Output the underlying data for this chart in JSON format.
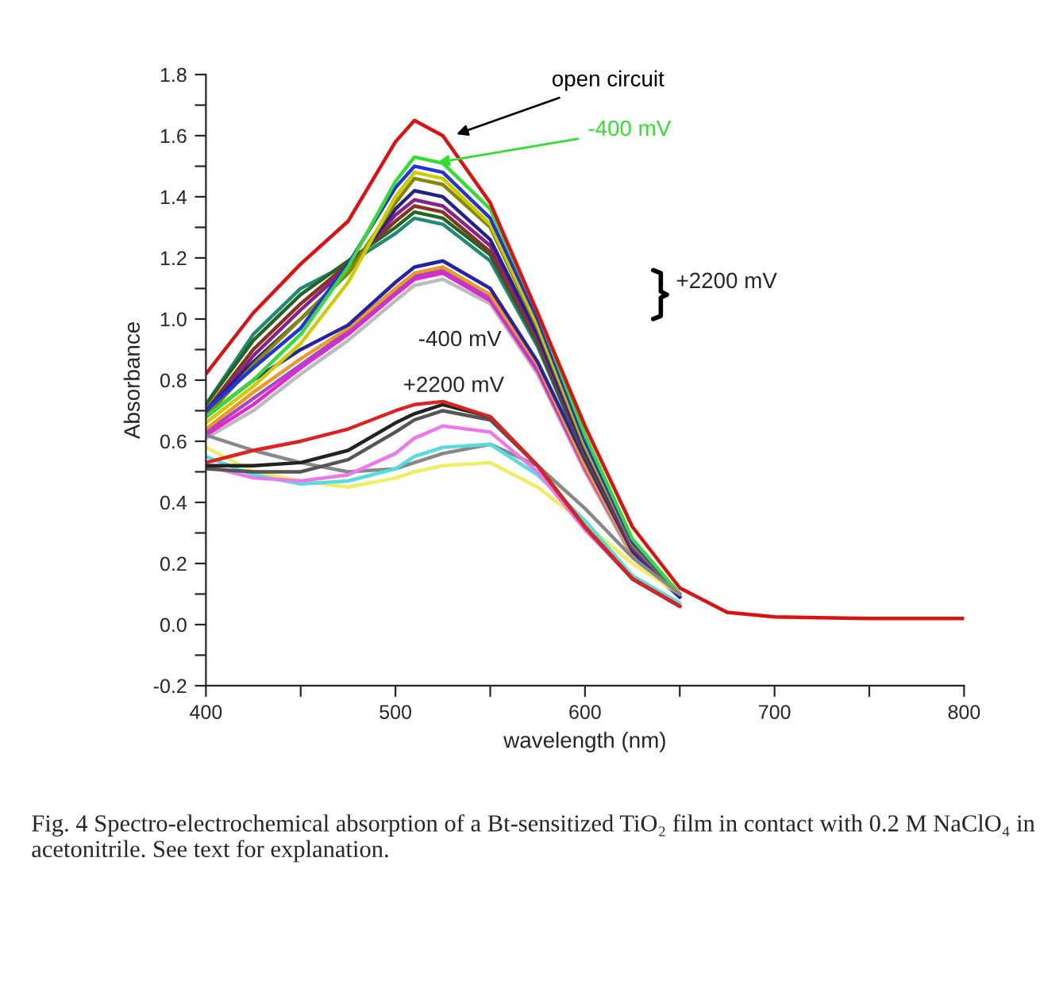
{
  "chart_data": {
    "type": "line",
    "xlabel": "wavelength (nm)",
    "ylabel": "Absorbance",
    "x": [
      400,
      425,
      450,
      475,
      500,
      510,
      525,
      550,
      575,
      600,
      625,
      650,
      675,
      700,
      750,
      800
    ],
    "xlim": [
      400,
      800
    ],
    "ylim": [
      -0.2,
      1.8
    ],
    "xticks": [
      400,
      {
        "value": 450,
        "label": null
      },
      500,
      {
        "value": 550,
        "label": null
      },
      600,
      {
        "value": 650,
        "label": null
      },
      700,
      {
        "value": 750,
        "label": null
      },
      800
    ],
    "yticks": [
      -0.2,
      {
        "value": -0.1,
        "label": null
      },
      {
        "value": 0,
        "label": "0.0"
      },
      {
        "value": 0.1,
        "label": null
      },
      0.2,
      {
        "value": 0.3,
        "label": null
      },
      0.4,
      {
        "value": 0.5,
        "label": null
      },
      0.6,
      {
        "value": 0.7,
        "label": null
      },
      0.8,
      {
        "value": 0.9,
        "label": null
      },
      {
        "value": 1,
        "label": "1.0"
      },
      {
        "value": 1.1,
        "label": null
      },
      1.2,
      {
        "value": 1.3,
        "label": null
      },
      1.4,
      {
        "value": 1.5,
        "label": null
      },
      1.6,
      {
        "value": 1.7,
        "label": null
      },
      1.8
    ],
    "grid": false,
    "legend": false,
    "marker": "none",
    "line_style": "solid",
    "series": [
      {
        "color": "#bbbbbb",
        "values": [
          0.61,
          0.7,
          0.82,
          0.93,
          1.06,
          1.11,
          1.13,
          1.05,
          0.82,
          0.5,
          0.22,
          0.09,
          null,
          null,
          null,
          null
        ]
      },
      {
        "color": "#ee22cc",
        "values": [
          0.62,
          0.72,
          0.84,
          0.95,
          1.08,
          1.13,
          1.15,
          1.06,
          0.83,
          0.51,
          0.23,
          0.09,
          null,
          null,
          null,
          null
        ]
      },
      {
        "color": "#aa44cc",
        "values": [
          0.63,
          0.74,
          0.85,
          0.96,
          1.09,
          1.14,
          1.16,
          1.07,
          0.84,
          0.52,
          0.23,
          0.09,
          null,
          null,
          null,
          null
        ]
      },
      {
        "color": "#ee9922",
        "values": [
          0.64,
          0.76,
          0.87,
          0.97,
          1.1,
          1.15,
          1.17,
          1.08,
          0.85,
          0.52,
          0.23,
          0.09,
          null,
          null,
          null,
          null
        ]
      },
      {
        "color": "#2222aa",
        "values": [
          0.68,
          0.8,
          0.9,
          0.98,
          1.12,
          1.17,
          1.19,
          1.1,
          0.86,
          0.54,
          0.24,
          0.09,
          null,
          null,
          null,
          null
        ]
      },
      {
        "color": "#228877",
        "values": [
          0.72,
          0.95,
          1.1,
          1.18,
          1.28,
          1.33,
          1.31,
          1.19,
          0.91,
          0.55,
          0.25,
          0.1,
          null,
          null,
          null,
          null
        ]
      },
      {
        "color": "#226622",
        "values": [
          0.72,
          0.93,
          1.08,
          1.19,
          1.3,
          1.35,
          1.33,
          1.21,
          0.92,
          0.55,
          0.25,
          0.1,
          null,
          null,
          null,
          null
        ]
      },
      {
        "color": "#883322",
        "values": [
          0.7,
          0.9,
          1.05,
          1.18,
          1.32,
          1.37,
          1.35,
          1.22,
          0.93,
          0.56,
          0.25,
          0.1,
          null,
          null,
          null,
          null
        ]
      },
      {
        "color": "#882288",
        "values": [
          0.69,
          0.88,
          1.03,
          1.17,
          1.34,
          1.39,
          1.37,
          1.24,
          0.94,
          0.56,
          0.25,
          0.1,
          null,
          null,
          null,
          null
        ]
      },
      {
        "color": "#222288",
        "values": [
          0.7,
          0.86,
          1.0,
          1.15,
          1.36,
          1.42,
          1.4,
          1.26,
          0.95,
          0.57,
          0.26,
          0.1,
          null,
          null,
          null,
          null
        ]
      },
      {
        "color": "#888800",
        "values": [
          0.68,
          0.85,
          1.0,
          1.15,
          1.38,
          1.46,
          1.44,
          1.3,
          0.97,
          0.58,
          0.26,
          0.1,
          null,
          null,
          null,
          null
        ]
      },
      {
        "color": "#cccc00",
        "values": [
          0.66,
          0.78,
          0.92,
          1.12,
          1.4,
          1.48,
          1.46,
          1.31,
          0.98,
          0.59,
          0.27,
          0.1,
          null,
          null,
          null,
          null
        ]
      },
      {
        "color": "#2233dd",
        "values": [
          0.7,
          0.84,
          0.97,
          1.18,
          1.43,
          1.5,
          1.48,
          1.33,
          1.0,
          0.6,
          0.27,
          0.1,
          null,
          null,
          null,
          null
        ]
      },
      {
        "color": "#33dd33",
        "values": [
          0.68,
          0.8,
          0.95,
          1.17,
          1.45,
          1.53,
          1.51,
          1.36,
          1.02,
          0.62,
          0.28,
          0.1,
          null,
          null,
          null,
          null
        ]
      },
      {
        "color": "#eeee66",
        "values": [
          0.58,
          0.5,
          0.47,
          0.45,
          0.48,
          0.5,
          0.52,
          0.53,
          0.45,
          0.33,
          0.2,
          0.1,
          null,
          null,
          null,
          null
        ]
      },
      {
        "color": "#888888",
        "values": [
          0.62,
          0.57,
          0.53,
          0.5,
          0.51,
          0.53,
          0.56,
          0.59,
          0.52,
          0.38,
          0.22,
          0.1,
          null,
          null,
          null,
          null
        ]
      },
      {
        "color": "#55dddd",
        "values": [
          0.55,
          0.49,
          0.46,
          0.47,
          0.51,
          0.55,
          0.58,
          0.59,
          0.49,
          0.34,
          0.16,
          0.07,
          null,
          null,
          null,
          null
        ]
      },
      {
        "color": "#ee77ee",
        "values": [
          0.52,
          0.48,
          0.47,
          0.49,
          0.56,
          0.61,
          0.65,
          0.63,
          0.5,
          0.31,
          0.15,
          0.06,
          null,
          null,
          null,
          null
        ]
      },
      {
        "color": "#555555",
        "values": [
          0.51,
          0.5,
          0.5,
          0.54,
          0.63,
          0.67,
          0.7,
          0.67,
          0.52,
          0.32,
          0.15,
          0.06,
          null,
          null,
          null,
          null
        ]
      },
      {
        "color": "#222222",
        "values": [
          0.52,
          0.52,
          0.53,
          0.57,
          0.66,
          0.69,
          0.72,
          0.68,
          0.52,
          0.32,
          0.15,
          0.06,
          null,
          null,
          null,
          null
        ]
      },
      {
        "color": "#dd2222",
        "values": [
          0.53,
          0.57,
          0.6,
          0.64,
          0.7,
          0.72,
          0.73,
          0.68,
          0.52,
          0.32,
          0.15,
          0.06,
          null,
          null,
          null,
          null
        ]
      },
      {
        "color": "#dd1111",
        "values": [
          0.82,
          1.02,
          1.18,
          1.32,
          1.58,
          1.65,
          1.6,
          1.38,
          1.02,
          0.65,
          0.32,
          0.12,
          0.04,
          0.025,
          0.02,
          0.02
        ]
      }
    ],
    "annotations": [
      {
        "text": "open circuit",
        "x": 530,
        "y": 1.6
      },
      {
        "text": "-400 mV",
        "x": 520,
        "y": 1.51
      },
      "+2200 mV",
      "-400 mV",
      "+2200 mV",
      "Fig. 4 Spectro-electrochemical absorption of a Bt-sensitized TiO₂ film in contact with 0.2 M NaClO₄ in acetonitrile. See text for explanation."
    ]
  }
}
